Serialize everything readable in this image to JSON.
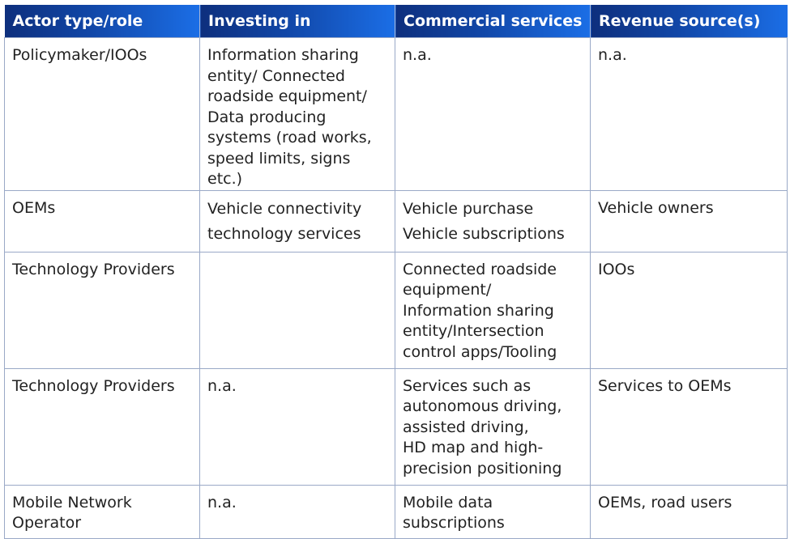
{
  "table": {
    "headers": [
      "Actor type/role",
      "Investing in",
      "Commercial services",
      "Revenue source(s)"
    ],
    "rows": [
      {
        "actor": "Policymaker/IOOs",
        "investing": "Information sharing entity/ Connected roadside equipment/ Data producing systems (road works, speed limits, signs etc.)",
        "services": "n.a.",
        "revenue": "n.a."
      },
      {
        "actor": "OEMs",
        "investing": "Vehicle connectivity technology services",
        "services_lines": [
          "Vehicle purchase",
          "Vehicle subscriptions"
        ],
        "revenue": "Vehicle owners"
      },
      {
        "actor": "Technology Providers",
        "investing": "",
        "services": "Connected roadside equipment/ Information sharing entity/Intersection control apps/Tooling",
        "revenue": "IOOs"
      },
      {
        "actor": "Technology Providers",
        "investing": "n.a.",
        "services_lines": [
          "Services such as autonomous driving, assisted driving,",
          "HD map and high-precision positioning"
        ],
        "revenue": "Services to OEMs"
      },
      {
        "actor": "Mobile Network Operator",
        "investing": "n.a.",
        "services": "Mobile data subscriptions",
        "revenue": "OEMs, road users"
      }
    ]
  }
}
